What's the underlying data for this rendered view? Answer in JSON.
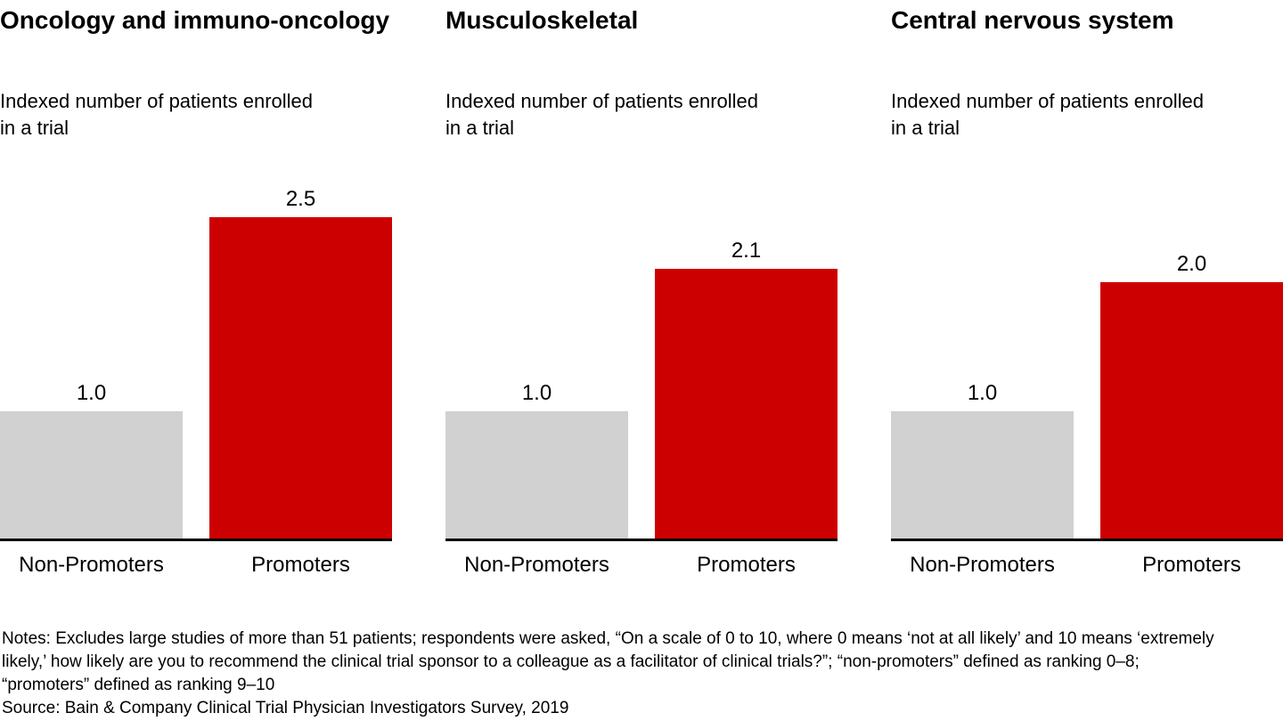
{
  "colors": {
    "promoter_red": "#cc0000",
    "non_promoter_gray": "#d1d1d1",
    "axis_black": "#000000"
  },
  "chart_data": [
    {
      "type": "bar",
      "title": "Oncology and immuno-oncology",
      "subtitle": "Indexed number of patients enrolled\nin a trial",
      "categories": [
        "Non-Promoters",
        "Promoters"
      ],
      "values": [
        1.0,
        2.5
      ],
      "value_labels": [
        "1.0",
        "2.5"
      ],
      "bar_colors": [
        "#d1d1d1",
        "#cc0000"
      ],
      "ylim": [
        0,
        2.8
      ],
      "grid": false,
      "legend": "none"
    },
    {
      "type": "bar",
      "title": "Musculoskeletal",
      "subtitle": "Indexed number of patients enrolled\nin a trial",
      "categories": [
        "Non-Promoters",
        "Promoters"
      ],
      "values": [
        1.0,
        2.1
      ],
      "value_labels": [
        "1.0",
        "2.1"
      ],
      "bar_colors": [
        "#d1d1d1",
        "#cc0000"
      ],
      "ylim": [
        0,
        2.8
      ],
      "grid": false,
      "legend": "none"
    },
    {
      "type": "bar",
      "title": "Central nervous system",
      "subtitle": "Indexed number of patients enrolled\nin a trial",
      "categories": [
        "Non-Promoters",
        "Promoters"
      ],
      "values": [
        1.0,
        2.0
      ],
      "value_labels": [
        "1.0",
        "2.0"
      ],
      "bar_colors": [
        "#d1d1d1",
        "#cc0000"
      ],
      "ylim": [
        0,
        2.8
      ],
      "grid": false,
      "legend": "none"
    }
  ],
  "footer": {
    "notes": "Notes: Excludes large studies of more than 51 patients; respondents were asked, “On a scale of 0 to 10, where 0 means ‘not at all likely’ and 10 means ‘extremely\nlikely,’ how likely are you to recommend the clinical trial sponsor to a colleague as a facilitator of clinical trials?”; “non-promoters” defined as ranking 0–8;\n“promoters” defined as ranking 9–10",
    "source": "Source: Bain & Company Clinical Trial Physician Investigators Survey, 2019"
  }
}
